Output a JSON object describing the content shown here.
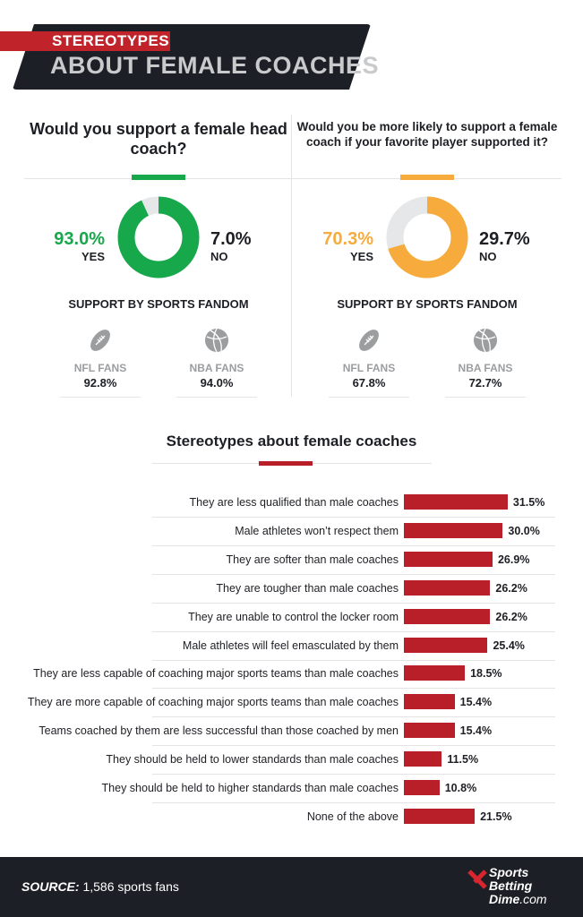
{
  "header": {
    "tag": "STEREOTYPES",
    "title": "ABOUT FEMALE COACHES"
  },
  "colors": {
    "green": "#17a84b",
    "orange": "#f6ab3c",
    "red": "#b81f28",
    "gray": "#e6e7e8",
    "dark": "#1d1f26"
  },
  "left": {
    "question": "Would you support  a female head coach?",
    "yes_pct": "93.0%",
    "yes_label": "YES",
    "no_pct": "7.0%",
    "no_label": "NO",
    "yes_value": 93.0,
    "fandom_title": "SUPPORT BY SPORTS FANDOM",
    "fans": [
      {
        "icon": "football-icon",
        "label": "NFL FANS",
        "value": "92.8%"
      },
      {
        "icon": "basketball-icon",
        "label": "NBA FANS",
        "value": "94.0%"
      }
    ]
  },
  "right": {
    "question": "Would you be more likely to support a female coach if your favorite player supported it?",
    "yes_pct": "70.3%",
    "yes_label": "YES",
    "no_pct": "29.7%",
    "no_label": "NO",
    "yes_value": 70.3,
    "fandom_title": "SUPPORT BY SPORTS FANDOM",
    "fans": [
      {
        "icon": "football-icon",
        "label": "NFL FANS",
        "value": "67.8%"
      },
      {
        "icon": "basketball-icon",
        "label": "NBA FANS",
        "value": "72.7%"
      }
    ]
  },
  "chart_data": {
    "type": "bar",
    "orientation": "horizontal",
    "title": "Stereotypes about female coaches",
    "categories": [
      "They are less qualified than male coaches",
      "Male athletes won’t respect them",
      "They are softer than male coaches",
      "They are tougher than male coaches",
      "They are unable to control the locker room",
      "Male athletes will feel emasculated by them",
      "They are less capable of coaching major sports teams than male coaches",
      "They are more capable of coaching major sports teams than male coaches",
      "Teams coached by them are less successful than those coached by men",
      "They should be held to lower standards than male coaches",
      "They should be held to higher standards than male coaches",
      "None of the above"
    ],
    "values": [
      31.5,
      30.0,
      26.9,
      26.2,
      26.2,
      25.4,
      18.5,
      15.4,
      15.4,
      11.5,
      10.8,
      21.5
    ],
    "labels": [
      "31.5%",
      "30.0%",
      "26.9%",
      "26.2%",
      "26.2%",
      "25.4%",
      "18.5%",
      "15.4%",
      "15.4%",
      "11.5%",
      "10.8%",
      "21.5%"
    ],
    "bar_color": "#b81f28"
  },
  "footer": {
    "source_label": "SOURCE:",
    "source_text": " 1,586 sports fans",
    "logo": "SportsBettingDime.com"
  }
}
